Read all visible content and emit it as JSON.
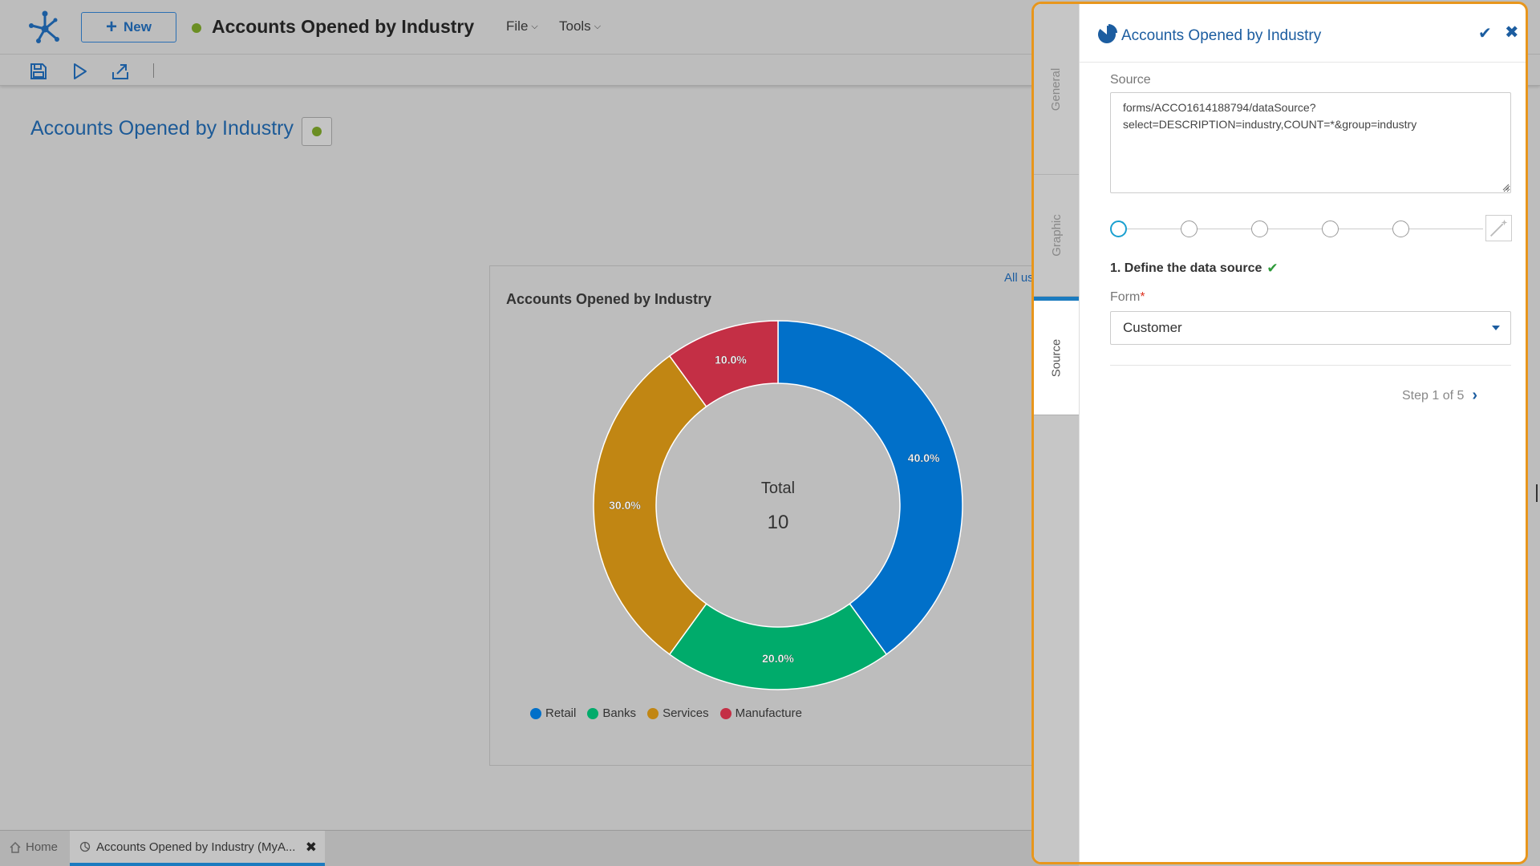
{
  "app": {
    "new_label": "New",
    "doc_title": "Accounts Opened by Industry",
    "menus": [
      {
        "label": "File"
      },
      {
        "label": "Tools"
      }
    ]
  },
  "page": {
    "heading": "Accounts Opened by Industry"
  },
  "chart_data": {
    "type": "pie",
    "variant": "donut",
    "title": "Accounts Opened by Industry",
    "center_label": "Total",
    "center_value": "10",
    "link_text": "All us",
    "slices": [
      {
        "name": "Retail",
        "value": 40.0,
        "label": "40.0%",
        "color": "#0170c9"
      },
      {
        "name": "Banks",
        "value": 20.0,
        "label": "20.0%",
        "color": "#00ab6b"
      },
      {
        "name": "Services",
        "value": 30.0,
        "label": "30.0%",
        "color": "#c18613"
      },
      {
        "name": "Manufacture",
        "value": 10.0,
        "label": "10.0%",
        "color": "#c42f45"
      }
    ],
    "legend": [
      "Retail",
      "Banks",
      "Services",
      "Manufacture"
    ],
    "legend_position": "bottom-left"
  },
  "taskbar": {
    "home_label": "Home",
    "tab_label": "Accounts Opened by Industry (MyA..."
  },
  "panel": {
    "title": "Accounts Opened by Industry",
    "tabs": [
      "General",
      "Graphic",
      "Source"
    ],
    "active_tab": "Source",
    "source_label": "Source",
    "source_value": "forms/ACCO1614188794/dataSource?\nselect=DESCRIPTION=industry,COUNT=*&group=industry",
    "step_title": "1. Define the data source",
    "form_label": "Form",
    "form_value": "Customer",
    "step_count": "Step 1 of 5"
  },
  "colors": {
    "accent": "#1c5da0",
    "panel_border": "#e8961c",
    "status_green": "#6b8e23"
  }
}
